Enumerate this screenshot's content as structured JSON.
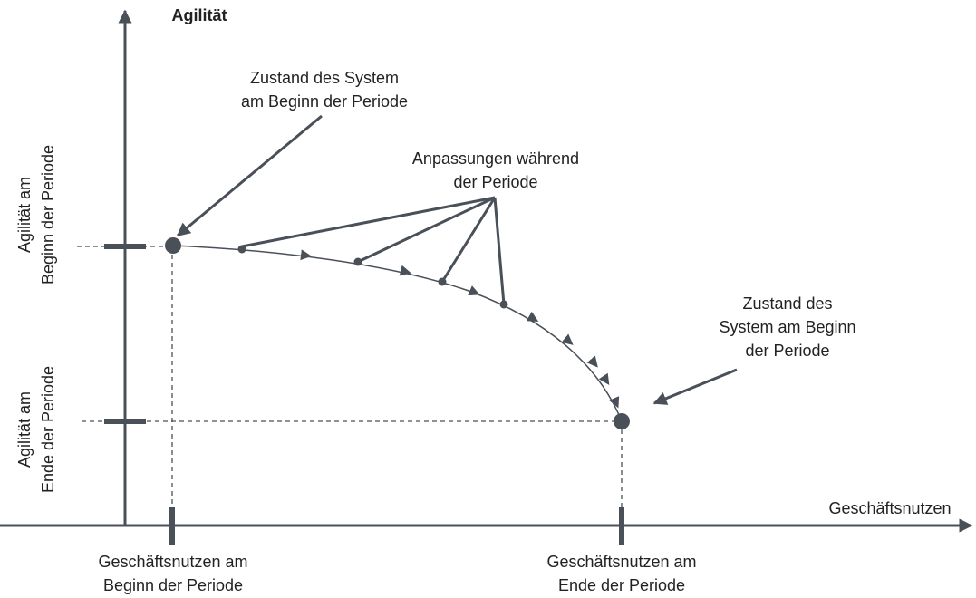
{
  "axes": {
    "y_label": "Agilität",
    "x_label": "Geschäftsnutzen"
  },
  "y_ticks": [
    {
      "lines": [
        "Agilität am",
        "Beginn der Periode"
      ]
    },
    {
      "lines": [
        "Agilität am",
        "Ende der Periode"
      ]
    }
  ],
  "x_ticks": [
    {
      "lines": [
        "Geschäftsnutzen am",
        "Beginn der Periode"
      ]
    },
    {
      "lines": [
        "Geschäftsnutzen am",
        "Ende der Periode"
      ]
    }
  ],
  "annotations": {
    "start": {
      "lines": [
        "Zustand des System",
        "am Beginn der Periode"
      ]
    },
    "adjustments": {
      "lines": [
        "Anpassungen während",
        "der Periode"
      ]
    },
    "end": {
      "lines": [
        "Zustand des",
        "System am Beginn",
        "der Periode"
      ]
    }
  }
}
